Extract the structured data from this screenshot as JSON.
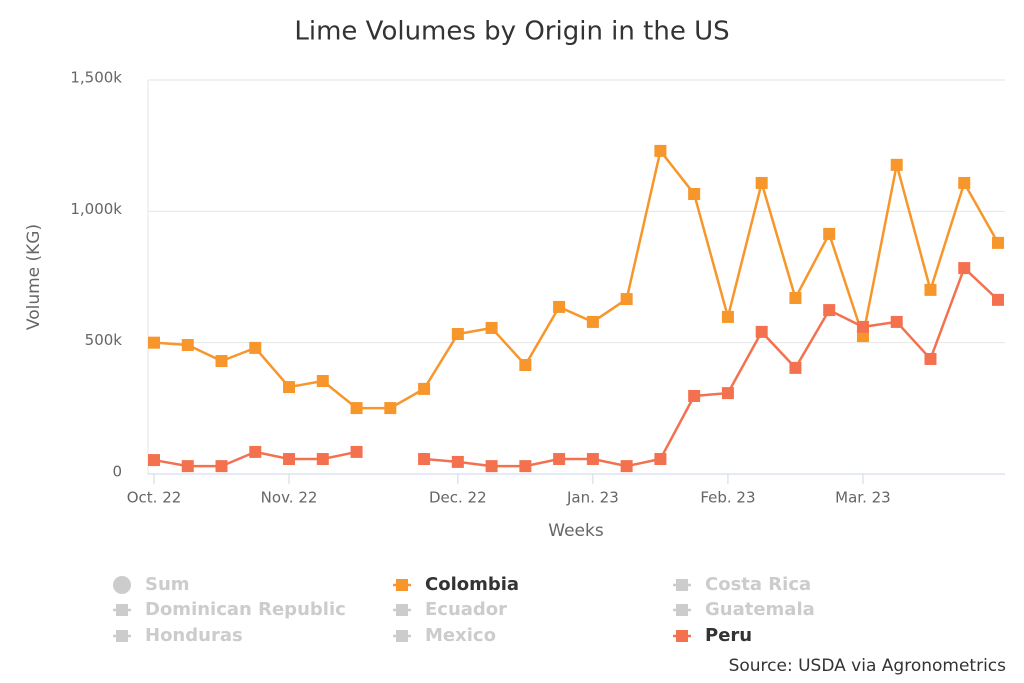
{
  "chart_data": {
    "type": "line",
    "title": "Lime Volumes by Origin in the US",
    "x_label": "Weeks",
    "y_label": "Volume (KG)",
    "source": "Source: USDA via Agronometrics",
    "categories": [
      "Oct. 22",
      null,
      null,
      null,
      "Nov. 22",
      null,
      null,
      null,
      null,
      "Dec. 22",
      null,
      null,
      null,
      "Jan. 23",
      null,
      null,
      null,
      "Feb. 23",
      null,
      null,
      null,
      "Mar. 23",
      null,
      null,
      null,
      null
    ],
    "ylim": [
      0,
      1500000
    ],
    "yticks": [
      {
        "value": 0,
        "label": "0"
      },
      {
        "value": 500000,
        "label": "500k"
      },
      {
        "value": 1000000,
        "label": "1,000k"
      },
      {
        "value": 1500000,
        "label": "1,500k"
      }
    ],
    "grid": true,
    "series": [
      {
        "name": "Sum",
        "visible": false,
        "marker": "circle"
      },
      {
        "name": "Colombia",
        "color": "#f7962a",
        "marker": "square",
        "values": [
          500000,
          491000,
          430000,
          480000,
          331000,
          354000,
          251000,
          251000,
          324000,
          533000,
          556000,
          415000,
          636000,
          579000,
          666000,
          1230000,
          1066000,
          598000,
          1108000,
          670000,
          914000,
          525000,
          1177000,
          701000,
          1108000,
          880000
        ]
      },
      {
        "name": "Costa Rica",
        "visible": false,
        "marker": "square"
      },
      {
        "name": "Dominican Republic",
        "visible": false,
        "marker": "square"
      },
      {
        "name": "Ecuador",
        "visible": false,
        "marker": "square"
      },
      {
        "name": "Guatemala",
        "visible": false,
        "marker": "square"
      },
      {
        "name": "Honduras",
        "visible": false,
        "marker": "square"
      },
      {
        "name": "Mexico",
        "visible": false,
        "marker": "square"
      },
      {
        "name": "Peru",
        "color": "#f4714f",
        "marker": "square",
        "values": [
          53000,
          30000,
          30000,
          84000,
          57000,
          57000,
          84000,
          null,
          57000,
          46000,
          30000,
          30000,
          57000,
          57000,
          30000,
          57000,
          297000,
          308000,
          541000,
          404000,
          624000,
          560000,
          579000,
          438000,
          784000,
          663000
        ]
      }
    ]
  }
}
